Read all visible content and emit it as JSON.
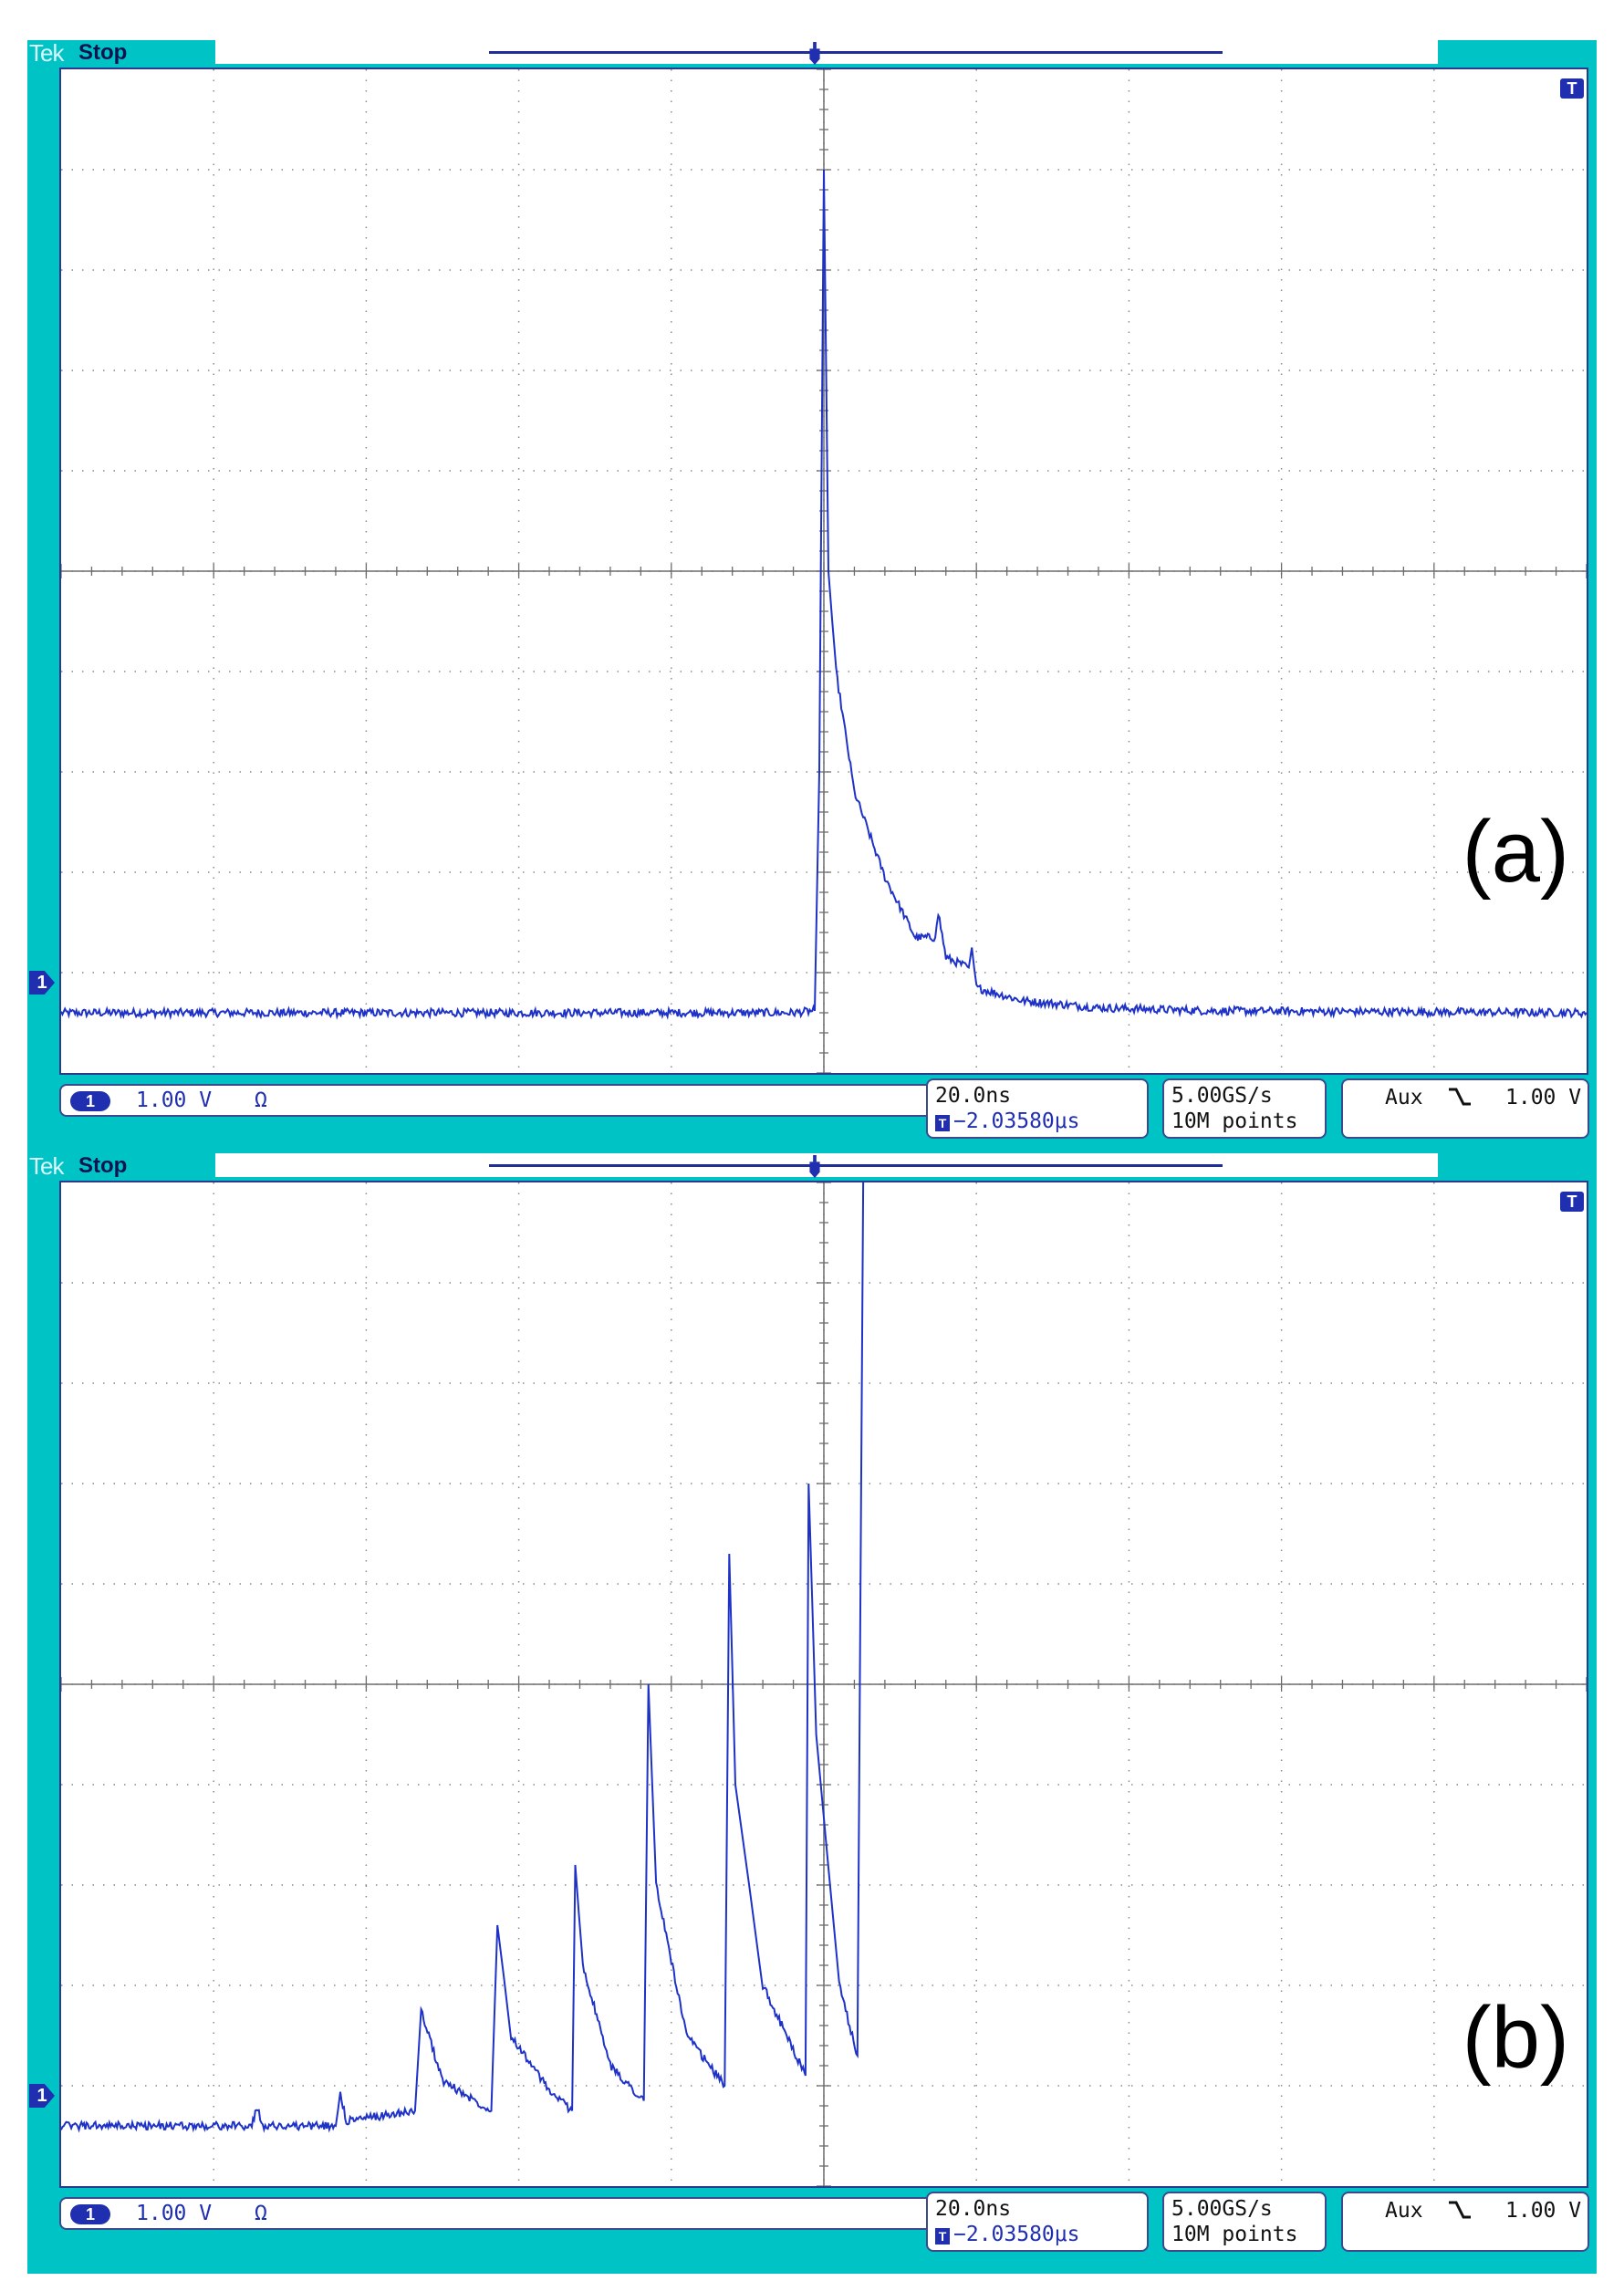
{
  "panels": [
    {
      "id": "a",
      "brand": "Tek",
      "run_state": "Stop",
      "label": "(a)",
      "channel": {
        "number": "1",
        "scale": "1.00 V",
        "coupling": "Ω"
      },
      "timebase": {
        "scale": "20.0ns",
        "delay": "−2.03580μs"
      },
      "acquisition": {
        "rate": "5.00GS/s",
        "record": "10M points"
      },
      "trigger": {
        "source": "Aux",
        "slope": "\\",
        "level": "1.00 V"
      },
      "trigger_marker": "T",
      "channel_marker": "1"
    },
    {
      "id": "b",
      "brand": "Tek",
      "run_state": "Stop",
      "label": "(b)",
      "channel": {
        "number": "1",
        "scale": "1.00 V",
        "coupling": "Ω"
      },
      "timebase": {
        "scale": "20.0ns",
        "delay": "−2.03580μs"
      },
      "acquisition": {
        "rate": "5.00GS/s",
        "record": "10M points"
      },
      "trigger": {
        "source": "Aux",
        "slope": "\\",
        "level": "1.00 V"
      },
      "trigger_marker": "T",
      "channel_marker": "1"
    }
  ],
  "colors": {
    "trace": "#1e32c8",
    "frame": "#00c3c6",
    "graticule": "#8a8a8a"
  },
  "chart_data": [
    {
      "type": "line",
      "panel": "a",
      "x_unit": "divisions",
      "y_unit": "divisions",
      "xlim": [
        0,
        10
      ],
      "ylim": [
        0,
        10
      ],
      "grid": true,
      "baseline": 0.6,
      "series": [
        {
          "x": [
            0,
            4.8,
            4.94,
            4.97,
            5.0,
            5.03,
            5.08,
            5.2,
            5.4,
            5.6,
            5.73,
            5.75,
            5.8,
            5.95,
            5.97,
            6.0,
            6.3,
            6.8,
            7.5,
            10
          ],
          "y": [
            0.6,
            0.6,
            0.62,
            3.0,
            9.0,
            5.0,
            4.0,
            2.8,
            1.95,
            1.35,
            1.35,
            1.6,
            1.15,
            1.05,
            1.25,
            0.85,
            0.72,
            0.65,
            0.62,
            0.6
          ]
        }
      ]
    },
    {
      "type": "line",
      "panel": "b",
      "x_unit": "divisions",
      "y_unit": "divisions",
      "xlim": [
        0,
        10
      ],
      "ylim": [
        0,
        10
      ],
      "grid": true,
      "baseline": 0.6,
      "series": [
        {
          "x": [
            0,
            1.25,
            1.28,
            1.33,
            1.8,
            1.83,
            1.87,
            2.32,
            2.36,
            2.5,
            2.82,
            2.86,
            2.95,
            3.2,
            3.35,
            3.37,
            3.42,
            3.6,
            3.82,
            3.85,
            3.9,
            4.1,
            4.35,
            4.38,
            4.42,
            4.6,
            4.88,
            4.9,
            4.95,
            5.1,
            5.22,
            5.26,
            5.3
          ],
          "y": [
            0.6,
            0.6,
            0.78,
            0.6,
            0.6,
            0.92,
            0.65,
            0.75,
            1.75,
            1.05,
            0.75,
            2.6,
            1.5,
            0.95,
            0.75,
            3.2,
            2.2,
            1.2,
            0.85,
            5.0,
            3.0,
            1.5,
            1.0,
            6.3,
            4.0,
            2.0,
            1.1,
            7.0,
            4.5,
            2.0,
            1.3,
            10.5,
            10.5
          ]
        }
      ]
    }
  ]
}
